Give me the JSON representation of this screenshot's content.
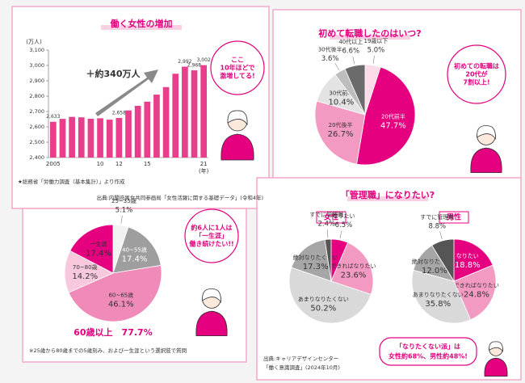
{
  "chart_data": [
    {
      "type": "bar",
      "title": "働く女性の増加",
      "y_unit": "(万人)",
      "x_unit": "(年)",
      "categories": [
        "2005",
        null,
        null,
        null,
        null,
        "10",
        null,
        "12",
        null,
        null,
        "15",
        null,
        null,
        null,
        null,
        null,
        "21"
      ],
      "values": [
        2633,
        2652,
        2665,
        2662,
        2653,
        2656,
        2647,
        2658,
        2707,
        2737,
        2764,
        2810,
        2859,
        2946,
        2992,
        2968,
        3002
      ],
      "value_labels": [
        "2,633",
        null,
        null,
        null,
        null,
        null,
        null,
        "2,658",
        null,
        null,
        null,
        null,
        null,
        null,
        "2,992",
        "2,968",
        "3,002"
      ],
      "color": "#e83e8c",
      "ylim": [
        2400,
        3100
      ],
      "yticks": [
        {
          "value": 2400,
          "label": "2,400"
        },
        {
          "value": 2500,
          "label": "2,500"
        },
        {
          "value": 2600,
          "label": "2,600"
        },
        {
          "value": 2700,
          "label": "2,700"
        },
        {
          "value": 2800,
          "label": "2,800"
        },
        {
          "value": 2900,
          "label": "2,900"
        },
        {
          "value": 3000,
          "label": "3,000"
        },
        {
          "value": 3100,
          "label": "3,100"
        }
      ],
      "annotation": "＋約340万人",
      "bubble": [
        "ここ",
        "10年ほどで",
        "激増してる!"
      ],
      "note": "★総務省「労働力調査（基本集計）」より作成",
      "source": "出典:内閣府男女共同参画局「女性活躍に関する基礎データ」(令和4年)"
    },
    {
      "type": "pie",
      "title": "初めて転職したのはいつ?",
      "pies": [
        {
          "categories": [
            "19歳以下",
            "20代前半",
            "20代後半",
            "30代前半",
            "30代後半",
            "40代以上"
          ],
          "values": [
            5.0,
            47.7,
            26.7,
            10.4,
            3.6,
            6.6
          ],
          "value_labels": [
            "5.0%",
            "47.7%",
            "26.7%",
            "10.4%",
            "3.6%",
            "6.6%"
          ],
          "colors": [
            "#fbdbe8",
            "#e4007f",
            "#f39ac2",
            "#e3e3e3",
            "#bdbdbd",
            "#6b6b6b"
          ],
          "label_colors": [
            "#333333",
            "#ffffff",
            "#333333",
            "#333333",
            "#333333",
            "#333333"
          ]
        }
      ],
      "bubble": [
        "初めての転職は",
        "20代が",
        "7割以上!"
      ]
    },
    {
      "type": "pie",
      "pies": [
        {
          "categories": [
            "25~35歳",
            "40~55歳",
            "60~65歳",
            "70~80歳",
            "一生涯"
          ],
          "values": [
            5.1,
            17.4,
            46.1,
            14.2,
            17.4
          ],
          "value_labels": [
            "5.1%",
            "17.4%",
            "46.1%",
            "14.2%",
            "17.4%"
          ],
          "colors": [
            "#f2f2f2",
            "#9e9e9e",
            "#ef8ab9",
            "#f8c9dd",
            "#e4007f"
          ],
          "label_colors": [
            "#333333",
            "#ffffff",
            "#333333",
            "#333333",
            "#333333"
          ]
        }
      ],
      "highlight": "60歳以上　77.7%",
      "bubble": [
        "約6人に1人は",
        "「一生涯」",
        "働き続けたい!!"
      ],
      "note": "※25歳から80歳までの5歳刻み、および一生涯という選択肢で質問"
    },
    {
      "type": "pie",
      "title": "「管理職」になりたい?",
      "pies": [
        {
          "name": "女性",
          "categories": [
            "なりたい",
            "できればなりたい",
            "あまりなりたくない",
            "絶対なりたくない",
            "すでに管理職"
          ],
          "values": [
            6.5,
            23.6,
            50.2,
            17.3,
            2.4
          ],
          "value_labels": [
            "6.5%",
            "23.6%",
            "50.2%",
            "17.3%",
            "2.4%"
          ],
          "colors": [
            "#e4007f",
            "#f39ac2",
            "#d9d9d9",
            "#a6a6a6",
            "#555555"
          ],
          "label_colors": [
            "#333333",
            "#333333",
            "#333333",
            "#333333",
            "#333333"
          ]
        },
        {
          "name": "男性",
          "categories": [
            "なりたい",
            "できればなりたい",
            "あまりなりたくない",
            "絶対なりたくない",
            "すでに管理職"
          ],
          "values": [
            18.8,
            24.8,
            35.8,
            12.0,
            8.8
          ],
          "value_labels": [
            "18.8%",
            "24.8%",
            "35.8%",
            "12.0%",
            "8.8%"
          ],
          "colors": [
            "#e4007f",
            "#f39ac2",
            "#d9d9d9",
            "#a6a6a6",
            "#555555"
          ],
          "label_colors": [
            "#ffffff",
            "#333333",
            "#333333",
            "#333333",
            "#333333"
          ]
        }
      ],
      "source": [
        "出典:キャリアデザインセンター",
        "「働く意識調査」(2024年10月)"
      ],
      "bubble": [
        "「なりたくない派」は",
        "女性約68%、男性約48%!"
      ]
    }
  ]
}
